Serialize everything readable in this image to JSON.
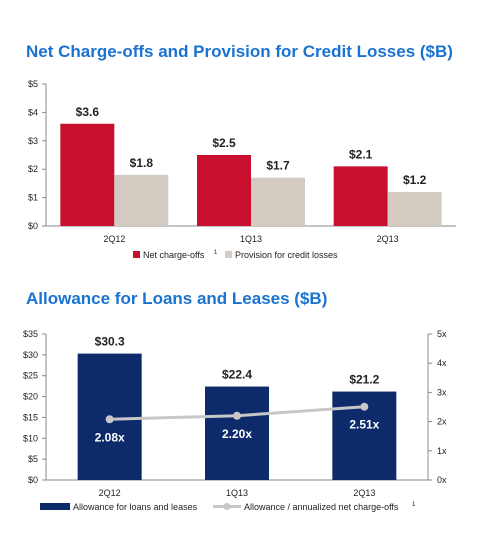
{
  "colors": {
    "net_chargeoffs": "#c8102e",
    "provision": "#d4cbc2",
    "allowance_bar": "#0d2a6b",
    "ratio_line": "#c7c7c7",
    "title": "#1a73d0"
  },
  "chart_data": [
    {
      "type": "bar",
      "title": "Net Charge-offs and Provision for Credit Losses ($B)",
      "categories": [
        "2Q12",
        "1Q13",
        "2Q13"
      ],
      "series": [
        {
          "name": "Net charge-offs",
          "footnote": "1",
          "values": [
            3.6,
            2.5,
            2.1
          ],
          "labels": [
            "$3.6",
            "$2.5",
            "$2.1"
          ]
        },
        {
          "name": "Provision for credit losses",
          "values": [
            1.8,
            1.7,
            1.2
          ],
          "labels": [
            "$1.8",
            "$1.7",
            "$1.2"
          ]
        }
      ],
      "ylim": [
        0,
        5
      ],
      "y_ticks": [
        "$0",
        "$1",
        "$2",
        "$3",
        "$4",
        "$5"
      ],
      "legend": "bottom"
    },
    {
      "type": "bar",
      "title": "Allowance for Loans and Leases ($B)",
      "categories": [
        "2Q12",
        "1Q13",
        "2Q13"
      ],
      "series": [
        {
          "name": "Allowance for loans and leases",
          "values": [
            30.3,
            22.4,
            21.2
          ],
          "labels": [
            "$30.3",
            "$22.4",
            "$21.2"
          ],
          "axis": "left"
        },
        {
          "name": "Allowance / annualized net charge-offs",
          "footnote": "1",
          "type": "line",
          "values": [
            2.08,
            2.2,
            2.51
          ],
          "labels": [
            "2.08x",
            "2.20x",
            "2.51x"
          ],
          "axis": "right"
        }
      ],
      "ylim": [
        0,
        35
      ],
      "y_ticks": [
        "$0",
        "$5",
        "$10",
        "$15",
        "$20",
        "$25",
        "$30",
        "$35"
      ],
      "y2lim": [
        0,
        5
      ],
      "y2_ticks": [
        "0x",
        "1x",
        "2x",
        "3x",
        "4x",
        "5x"
      ],
      "legend": "bottom"
    }
  ]
}
